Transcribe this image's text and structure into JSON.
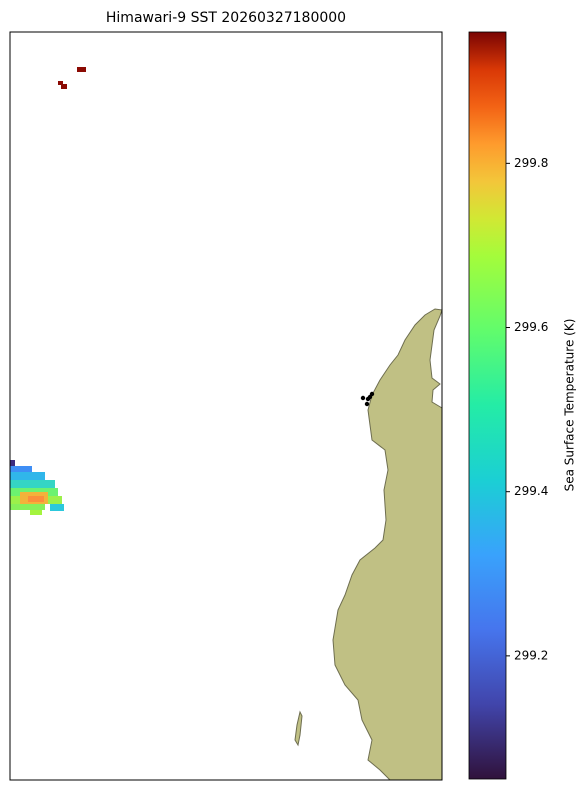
{
  "title": "Himawari-9 SST 20260327180000",
  "colorbar": {
    "label": "Sea Surface Temperature (K)",
    "clim": [
      299.05,
      299.96
    ],
    "ticks": [
      299.2,
      299.4,
      299.6,
      299.8
    ]
  }
}
